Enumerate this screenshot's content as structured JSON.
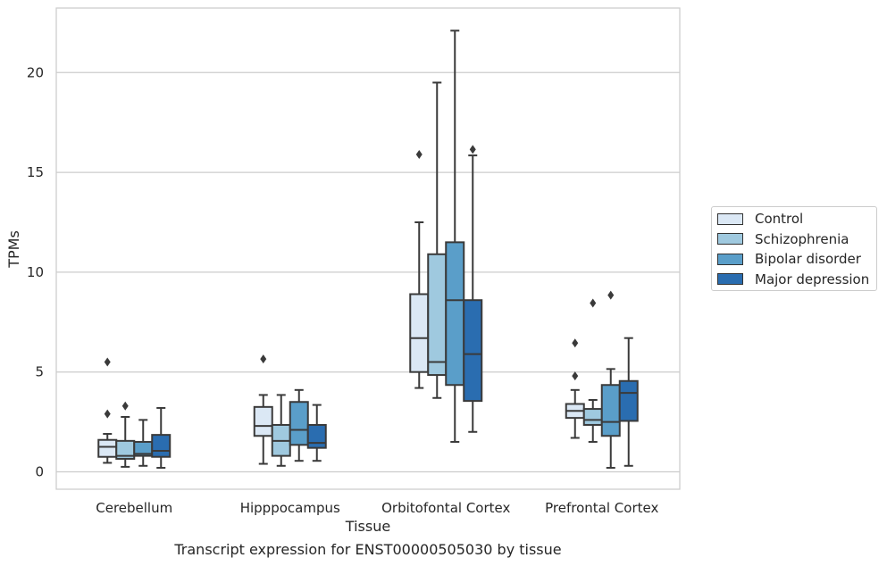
{
  "chart_data": {
    "type": "box",
    "title": "",
    "caption": "Transcript expression for ENST00000505030 by tissue",
    "xlabel": "Tissue",
    "ylabel": "TPMs",
    "ylim": [
      -0.9,
      23.2
    ],
    "yticks": [
      0,
      5,
      10,
      15,
      20
    ],
    "grid": "horizontal",
    "legend_position": "right",
    "categories": [
      "Cerebellum",
      "Hipppocampus",
      "Orbitofontal Cortex",
      "Prefrontal Cortex"
    ],
    "series": [
      {
        "name": "Control",
        "color": "#dbe8f5",
        "boxes": [
          {
            "whisker_low": 0.45,
            "q1": 0.75,
            "median": 1.25,
            "q3": 1.6,
            "whisker_high": 1.9,
            "outliers": [
              2.9,
              5.5
            ]
          },
          {
            "whisker_low": 0.4,
            "q1": 1.8,
            "median": 2.3,
            "q3": 3.25,
            "whisker_high": 3.85,
            "outliers": [
              5.65
            ]
          },
          {
            "whisker_low": 4.2,
            "q1": 5.0,
            "median": 6.7,
            "q3": 8.9,
            "whisker_high": 12.5,
            "outliers": [
              15.9
            ]
          },
          {
            "whisker_low": 1.7,
            "q1": 2.7,
            "median": 3.05,
            "q3": 3.4,
            "whisker_high": 4.1,
            "outliers": [
              4.8,
              6.45
            ]
          }
        ]
      },
      {
        "name": "Schizophrenia",
        "color": "#9fc9df",
        "boxes": [
          {
            "whisker_low": 0.25,
            "q1": 0.65,
            "median": 0.8,
            "q3": 1.55,
            "whisker_high": 2.75,
            "outliers": [
              3.3
            ]
          },
          {
            "whisker_low": 0.3,
            "q1": 0.8,
            "median": 1.55,
            "q3": 2.35,
            "whisker_high": 3.85,
            "outliers": []
          },
          {
            "whisker_low": 3.7,
            "q1": 4.85,
            "median": 5.5,
            "q3": 10.9,
            "whisker_high": 19.5,
            "outliers": []
          },
          {
            "whisker_low": 1.5,
            "q1": 2.35,
            "median": 2.6,
            "q3": 3.15,
            "whisker_high": 3.6,
            "outliers": [
              8.45
            ]
          }
        ]
      },
      {
        "name": "Bipolar disorder",
        "color": "#5a9ec9",
        "boxes": [
          {
            "whisker_low": 0.3,
            "q1": 0.8,
            "median": 0.9,
            "q3": 1.5,
            "whisker_high": 2.6,
            "outliers": []
          },
          {
            "whisker_low": 0.55,
            "q1": 1.35,
            "median": 2.1,
            "q3": 3.5,
            "whisker_high": 4.1,
            "outliers": []
          },
          {
            "whisker_low": 1.5,
            "q1": 4.35,
            "median": 8.6,
            "q3": 11.5,
            "whisker_high": 22.1,
            "outliers": []
          },
          {
            "whisker_low": 0.2,
            "q1": 1.8,
            "median": 2.5,
            "q3": 4.35,
            "whisker_high": 5.15,
            "outliers": [
              8.85
            ]
          }
        ]
      },
      {
        "name": "Major depression",
        "color": "#2a6db0",
        "boxes": [
          {
            "whisker_low": 0.2,
            "q1": 0.75,
            "median": 1.05,
            "q3": 1.85,
            "whisker_high": 3.2,
            "outliers": []
          },
          {
            "whisker_low": 0.55,
            "q1": 1.2,
            "median": 1.45,
            "q3": 2.35,
            "whisker_high": 3.35,
            "outliers": []
          },
          {
            "whisker_low": 2.0,
            "q1": 3.55,
            "median": 5.9,
            "q3": 8.6,
            "whisker_high": 15.85,
            "outliers": [
              16.15
            ]
          },
          {
            "whisker_low": 0.3,
            "q1": 2.55,
            "median": 3.95,
            "q3": 4.55,
            "whisker_high": 6.7,
            "outliers": []
          }
        ]
      }
    ]
  }
}
